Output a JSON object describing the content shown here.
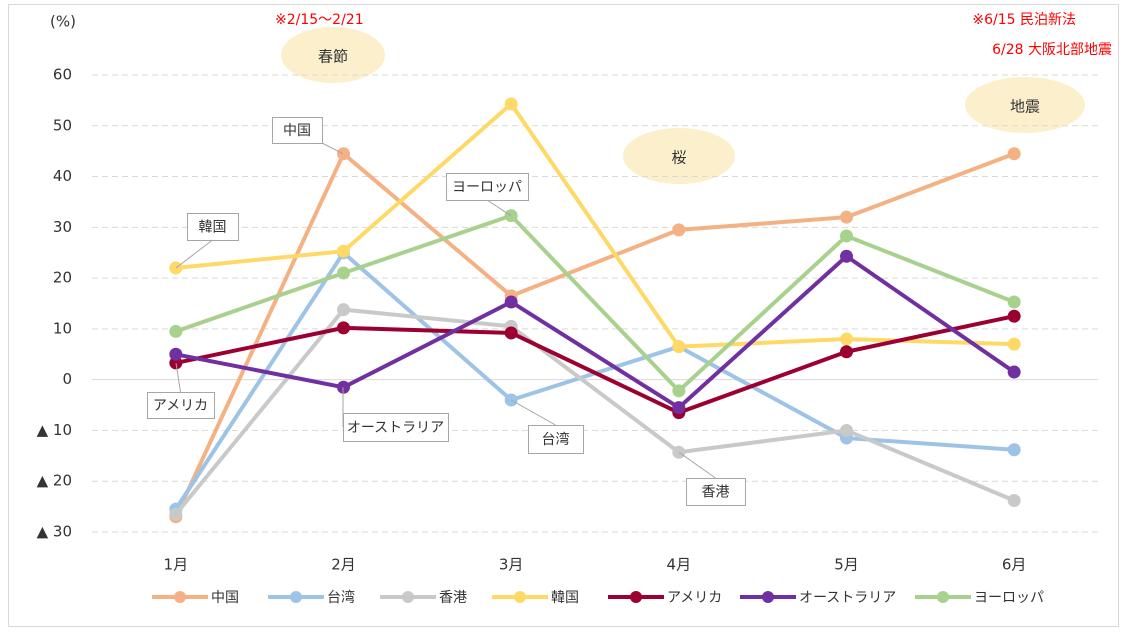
{
  "chart_data": {
    "type": "line",
    "y_label": "(%)",
    "annotations": [
      "※2/15〜2/21",
      "※6/15 民泊新法",
      "6/28 大阪北部地震"
    ],
    "events": [
      "春節",
      "桜",
      "地震"
    ],
    "categories": [
      "1月",
      "2月",
      "3月",
      "4月",
      "5月",
      "6月"
    ],
    "series": [
      {
        "name": "中国",
        "color": "#f4b183",
        "values": [
          -27,
          44.5,
          16.5,
          29.5,
          32,
          44.5
        ]
      },
      {
        "name": "台湾",
        "color": "#9dc3e6",
        "values": [
          -25.5,
          25,
          -4,
          6.5,
          -11.5,
          -13.8
        ]
      },
      {
        "name": "香港",
        "color": "#c9c9c9",
        "values": [
          -26.5,
          13.8,
          10.5,
          -14.3,
          -10,
          -23.8
        ]
      },
      {
        "name": "韓国",
        "color": "#ffd966",
        "values": [
          22,
          25.3,
          54.3,
          6.5,
          8,
          7
        ]
      },
      {
        "name": "アメリカ",
        "color": "#9b0030",
        "values": [
          3.3,
          10.2,
          9.2,
          -6.5,
          5.5,
          12.5
        ]
      },
      {
        "name": "オーストラリア",
        "color": "#7030a0",
        "values": [
          5,
          -1.5,
          15.3,
          -5.5,
          24.3,
          1.5
        ]
      },
      {
        "name": "ヨーロッパ",
        "color": "#a9d18e",
        "values": [
          9.5,
          21,
          32.3,
          -2.2,
          28.3,
          15.3
        ]
      }
    ],
    "ylim": [
      -30,
      60
    ],
    "yticks": [
      {
        "value": -30,
        "label": "▲ 30"
      },
      {
        "value": -20,
        "label": "▲ 20"
      },
      {
        "value": -10,
        "label": "▲ 10"
      },
      0,
      10,
      20,
      30,
      40,
      50,
      60
    ],
    "grid": true,
    "legend": "bottom"
  }
}
